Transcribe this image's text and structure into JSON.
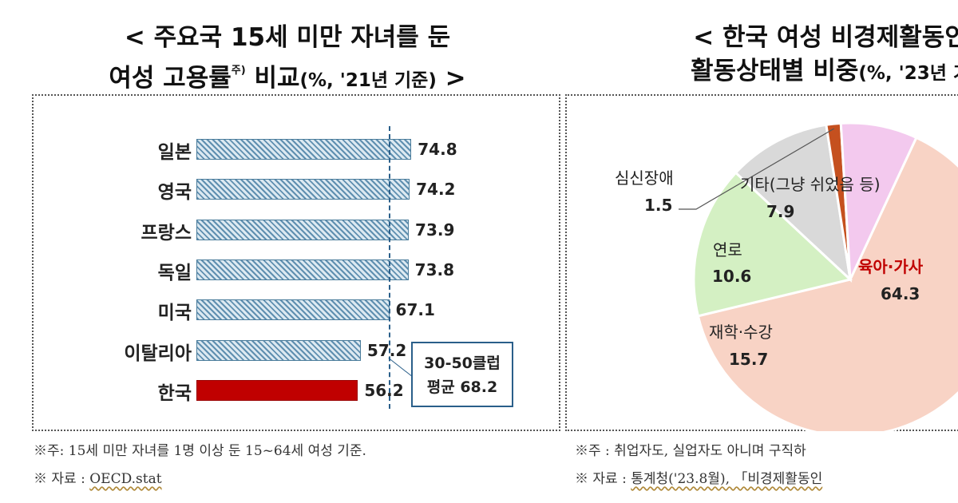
{
  "left_title": {
    "line1": "< 주요국 15세 미만 자녀를 둔",
    "line2_main": "여성 고용률",
    "line2_sup": "주)",
    "line2_rest": " 비교",
    "line2_unit": "(%, '21년 기준)",
    "line2_end": " >"
  },
  "right_title": {
    "line1": "< 한국 여성 비경제활동인",
    "line2_main": "활동상태별 비중",
    "line2_unit": "(%, '23년 기"
  },
  "chart_data": [
    {
      "type": "bar",
      "orientation": "horizontal",
      "categories": [
        "일본",
        "영국",
        "프랑스",
        "독일",
        "미국",
        "이탈리아",
        "한국"
      ],
      "values": [
        74.8,
        74.2,
        73.9,
        73.8,
        67.1,
        57.2,
        56.2
      ],
      "value_labels": [
        "74.8",
        "74.2",
        "73.9",
        "73.8",
        "67.1",
        "57.2",
        "56.2"
      ],
      "highlight": "한국",
      "highlight_color": "#c00000",
      "bar_color": "#5f8fb0",
      "reference_line": {
        "value": 68.2,
        "label_line1": "30-50클럽",
        "label_line2": "평균 68.2"
      },
      "xlim": [
        0,
        80
      ]
    },
    {
      "type": "pie",
      "labels": [
        "육아·가사",
        "재학·수강",
        "연로",
        "심신장애",
        "기타(그냥 쉬었음 등)"
      ],
      "value_labels": [
        "64.3",
        "15.7",
        "10.6",
        "1.5",
        "7.9"
      ],
      "values": [
        64.3,
        15.7,
        10.6,
        1.5,
        7.9
      ],
      "colors": [
        "#f8d3c5",
        "#d4f0c3",
        "#d9d9d9",
        "#c5501f",
        "#f3c9ee"
      ]
    }
  ],
  "notes": {
    "left1": "※주: 15세 미만 자녀를 1명 이상 둔 15~64세 여성 기준.",
    "left2_prefix": "※ 자료 : ",
    "left2_source": "OECD.stat",
    "right1": "※주 : 취업자도, 실업자도 아니며 구직하",
    "right2_prefix": "※ 자료 : ",
    "right2_source": "통계청('23.8월), 「비경제활동인"
  }
}
